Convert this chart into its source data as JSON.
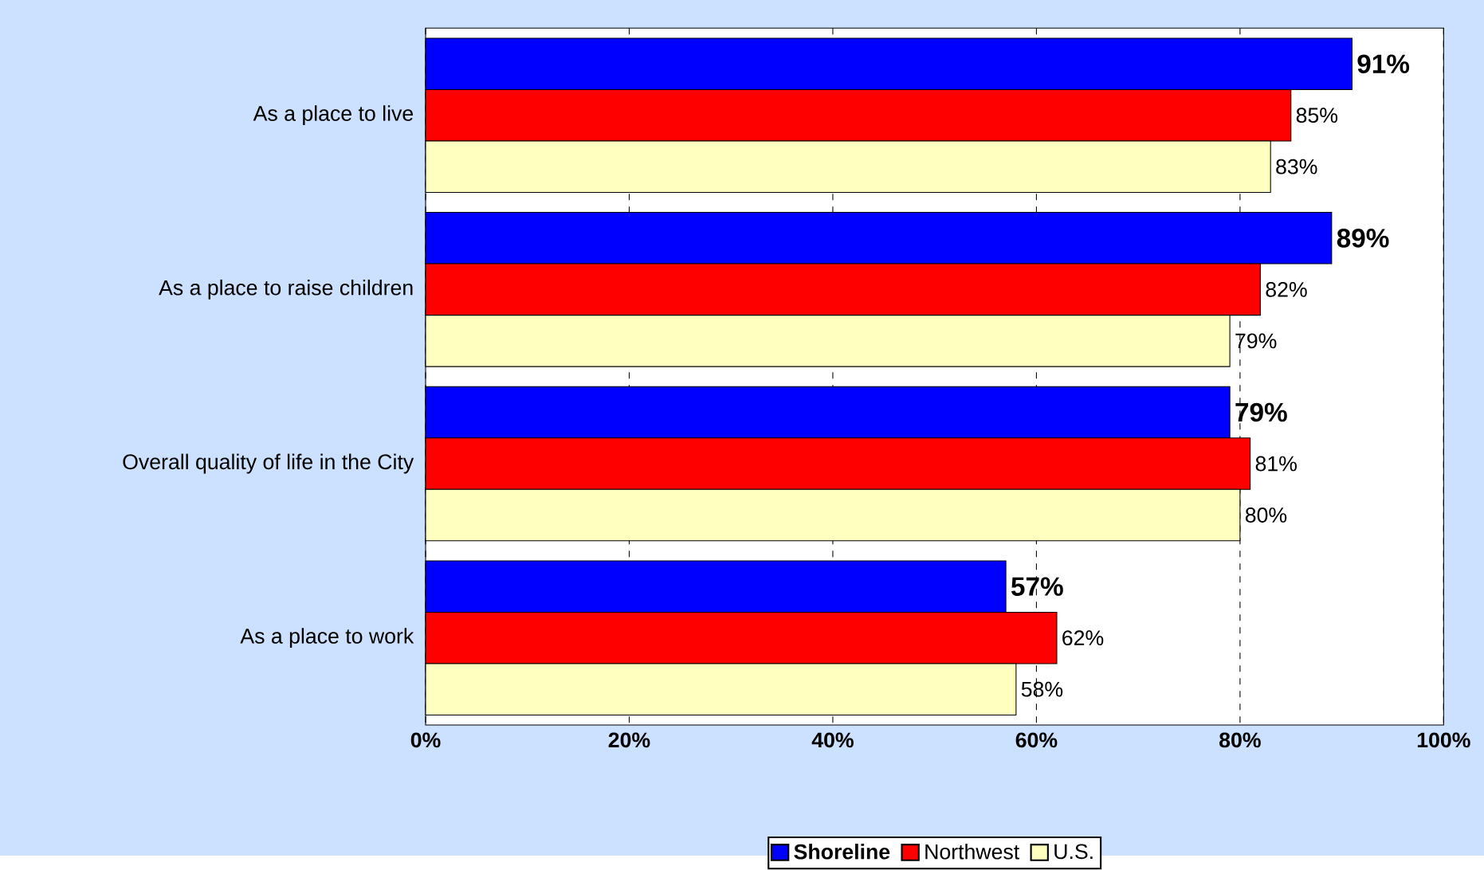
{
  "chart_data": {
    "type": "bar",
    "orientation": "horizontal",
    "categories": [
      "As a place to live",
      "As a place to raise children",
      "Overall quality of life in the City",
      "As a place to work"
    ],
    "series": [
      {
        "name": "Shoreline",
        "color": "#0000ff",
        "values": [
          91,
          89,
          79,
          57
        ],
        "value_labels": [
          "91%",
          "89%",
          "79%",
          "57%"
        ]
      },
      {
        "name": "Northwest",
        "color": "#ff0000",
        "values": [
          85,
          82,
          81,
          62
        ],
        "value_labels": [
          "85%",
          "82%",
          "81%",
          "62%"
        ]
      },
      {
        "name": "U.S.",
        "color": "#ffffc0",
        "values": [
          83,
          79,
          80,
          58
        ],
        "value_labels": [
          "83%",
          "79%",
          "80%",
          "58%"
        ]
      }
    ],
    "xlim": [
      0,
      100
    ],
    "xticks": [
      {
        "value": 0,
        "label": "0%"
      },
      {
        "value": 20,
        "label": "20%"
      },
      {
        "value": 40,
        "label": "40%"
      },
      {
        "value": 60,
        "label": "60%"
      },
      {
        "value": 80,
        "label": "80%"
      },
      {
        "value": 100,
        "label": "100%"
      }
    ],
    "grid": "x",
    "legend": "bottom"
  }
}
